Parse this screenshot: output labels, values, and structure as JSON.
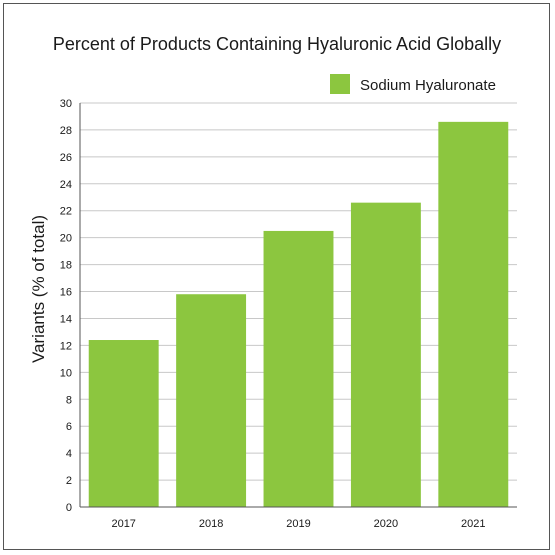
{
  "chart_data": {
    "type": "bar",
    "title": "Percent of Products Containing Hyaluronic Acid Globally",
    "xlabel": "",
    "ylabel": "Variants (% of total)",
    "categories": [
      "2017",
      "2018",
      "2019",
      "2020",
      "2021"
    ],
    "series": [
      {
        "name": "Sodium Hyaluronate",
        "values": [
          12.4,
          15.8,
          20.5,
          22.6,
          28.6
        ],
        "color": "#8cc63f"
      }
    ],
    "ylim": [
      0,
      30
    ],
    "yticks": [
      0,
      2,
      4,
      6,
      8,
      10,
      12,
      14,
      16,
      18,
      20,
      22,
      24,
      26,
      28,
      30
    ],
    "grid": true,
    "legend": "top-right"
  }
}
